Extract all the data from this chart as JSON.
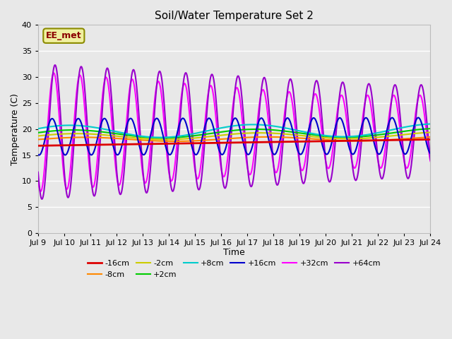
{
  "title": "Soil/Water Temperature Set 2",
  "xlabel": "Time",
  "ylabel": "Temperature (C)",
  "ylim": [
    0,
    40
  ],
  "x_tick_labels": [
    "Jul 9",
    "Jul 10",
    "Jul 11",
    "Jul 12",
    "Jul 13",
    "Jul 14",
    "Jul 15",
    "Jul 16",
    "Jul 17",
    "Jul 18",
    "Jul 19",
    "Jul 20",
    "Jul 21",
    "Jul 22",
    "Jul 23",
    "Jul 24"
  ],
  "bg_color": "#e8e8e8",
  "watermark": "EE_met",
  "neg16_color": "#dd0000",
  "neg8_color": "#ff8800",
  "neg2_color": "#cccc00",
  "pos2_color": "#00cc00",
  "pos8_color": "#00cccc",
  "pos16_color": "#0000cc",
  "pos32_color": "#ff00ff",
  "pos64_color": "#9900cc"
}
